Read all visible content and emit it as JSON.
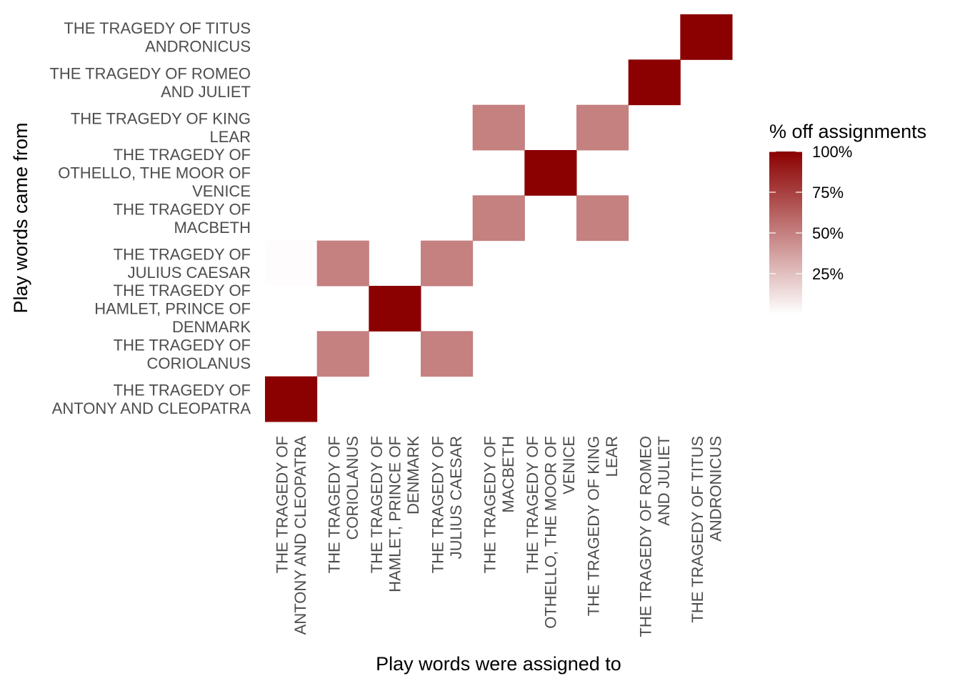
{
  "chart_data": {
    "type": "heatmap",
    "xlabel": "Play words were assigned to",
    "ylabel": "Play words came from",
    "x_categories": [
      [
        "THE TRAGEDY OF",
        "ANTONY AND CLEOPATRA"
      ],
      [
        "THE TRAGEDY OF",
        "CORIOLANUS"
      ],
      [
        "THE TRAGEDY OF",
        "HAMLET, PRINCE OF",
        "DENMARK"
      ],
      [
        "THE TRAGEDY OF",
        "JULIUS CAESAR"
      ],
      [
        "THE TRAGEDY OF",
        "MACBETH"
      ],
      [
        "THE TRAGEDY OF",
        "OTHELLO, THE MOOR OF",
        "VENICE"
      ],
      [
        "THE TRAGEDY OF KING",
        "LEAR"
      ],
      [
        "THE TRAGEDY OF ROMEO",
        "AND JULIET"
      ],
      [
        "THE TRAGEDY OF TITUS",
        "ANDRONICUS"
      ]
    ],
    "y_categories": [
      [
        "THE TRAGEDY OF",
        "ANTONY AND CLEOPATRA"
      ],
      [
        "THE TRAGEDY OF",
        "CORIOLANUS"
      ],
      [
        "THE TRAGEDY OF",
        "HAMLET, PRINCE OF",
        "DENMARK"
      ],
      [
        "THE TRAGEDY OF",
        "JULIUS CAESAR"
      ],
      [
        "THE TRAGEDY OF",
        "MACBETH"
      ],
      [
        "THE TRAGEDY OF",
        "OTHELLO, THE MOOR OF",
        "VENICE"
      ],
      [
        "THE TRAGEDY OF KING",
        "LEAR"
      ],
      [
        "THE TRAGEDY OF ROMEO",
        "AND JULIET"
      ],
      [
        "THE TRAGEDY OF TITUS",
        "ANDRONICUS"
      ]
    ],
    "cells": [
      {
        "x": 0,
        "y": 0,
        "value": 1.0
      },
      {
        "x": 1,
        "y": 1,
        "value": 0.5
      },
      {
        "x": 3,
        "y": 1,
        "value": 0.5
      },
      {
        "x": 2,
        "y": 2,
        "value": 1.0
      },
      {
        "x": 0,
        "y": 3,
        "value": 0.01
      },
      {
        "x": 1,
        "y": 3,
        "value": 0.5
      },
      {
        "x": 3,
        "y": 3,
        "value": 0.5
      },
      {
        "x": 4,
        "y": 4,
        "value": 0.5
      },
      {
        "x": 6,
        "y": 4,
        "value": 0.5
      },
      {
        "x": 5,
        "y": 5,
        "value": 1.0
      },
      {
        "x": 4,
        "y": 6,
        "value": 0.5
      },
      {
        "x": 6,
        "y": 6,
        "value": 0.5
      },
      {
        "x": 7,
        "y": 7,
        "value": 1.0
      },
      {
        "x": 8,
        "y": 8,
        "value": 1.0
      }
    ],
    "color_scale": {
      "low": "#ffffff",
      "high": "#8b0000",
      "domain": [
        0,
        1
      ]
    },
    "legend": {
      "title": "% off assignments",
      "position": "right",
      "breaks": [
        1.0,
        0.75,
        0.5,
        0.25
      ],
      "labels": [
        "100%",
        "75%",
        "50%",
        "25%"
      ]
    },
    "grid": false
  }
}
